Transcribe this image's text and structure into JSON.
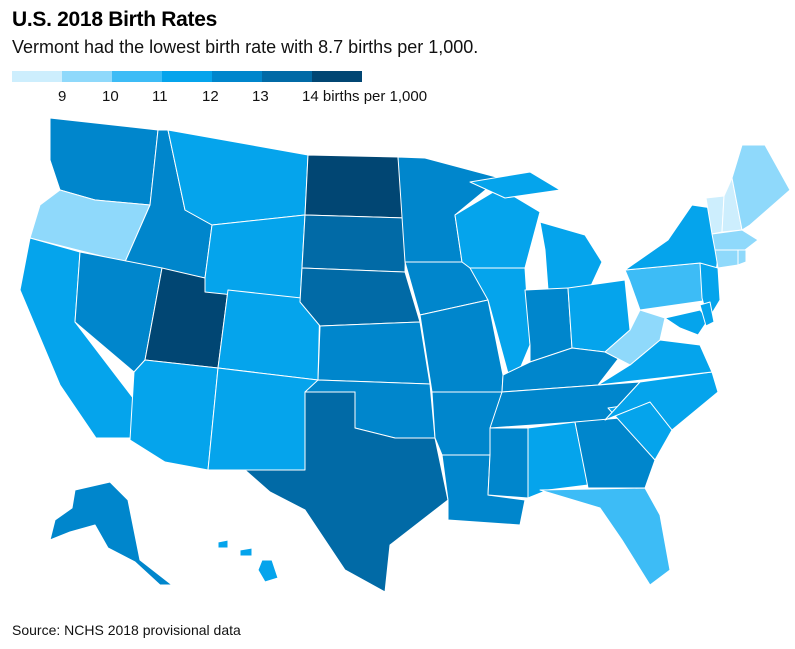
{
  "title": "U.S. 2018 Birth Rates",
  "subtitle": "Vermont had the lowest birth rate with 8.7 births per 1,000.",
  "source": "Source: NCHS 2018 provisional data",
  "legend": {
    "labels": [
      "9",
      "10",
      "11",
      "12",
      "13",
      "14 births per 1,000"
    ],
    "colors": [
      "#cdeefd",
      "#8fd9fb",
      "#3dbcf6",
      "#05a4ec",
      "#0086cc",
      "#016aa6",
      "#014673"
    ]
  },
  "states": {
    "WA": {
      "name": "Washington",
      "bin": 4
    },
    "OR": {
      "name": "Oregon",
      "bin": 1
    },
    "CA": {
      "name": "California",
      "bin": 3
    },
    "ID": {
      "name": "Idaho",
      "bin": 4
    },
    "NV": {
      "name": "Nevada",
      "bin": 4
    },
    "UT": {
      "name": "Utah",
      "bin": 6
    },
    "AZ": {
      "name": "Arizona",
      "bin": 3
    },
    "MT": {
      "name": "Montana",
      "bin": 3
    },
    "WY": {
      "name": "Wyoming",
      "bin": 3
    },
    "CO": {
      "name": "Colorado",
      "bin": 3
    },
    "NM": {
      "name": "New Mexico",
      "bin": 3
    },
    "ND": {
      "name": "North Dakota",
      "bin": 6
    },
    "SD": {
      "name": "South Dakota",
      "bin": 5
    },
    "NE": {
      "name": "Nebraska",
      "bin": 5
    },
    "KS": {
      "name": "Kansas",
      "bin": 4
    },
    "OK": {
      "name": "Oklahoma",
      "bin": 4
    },
    "TX": {
      "name": "Texas",
      "bin": 5
    },
    "MN": {
      "name": "Minnesota",
      "bin": 4
    },
    "IA": {
      "name": "Iowa",
      "bin": 4
    },
    "MO": {
      "name": "Missouri",
      "bin": 4
    },
    "AR": {
      "name": "Arkansas",
      "bin": 4
    },
    "LA": {
      "name": "Louisiana",
      "bin": 4
    },
    "WI": {
      "name": "Wisconsin",
      "bin": 3
    },
    "IL": {
      "name": "Illinois",
      "bin": 3
    },
    "MI": {
      "name": "Michigan",
      "bin": 3
    },
    "IN": {
      "name": "Indiana",
      "bin": 4
    },
    "OH": {
      "name": "Ohio",
      "bin": 3
    },
    "KY": {
      "name": "Kentucky",
      "bin": 4
    },
    "TN": {
      "name": "Tennessee",
      "bin": 4
    },
    "MS": {
      "name": "Mississippi",
      "bin": 4
    },
    "AL": {
      "name": "Alabama",
      "bin": 3
    },
    "GA": {
      "name": "Georgia",
      "bin": 4
    },
    "FL": {
      "name": "Florida",
      "bin": 2
    },
    "SC": {
      "name": "South Carolina",
      "bin": 3
    },
    "NC": {
      "name": "North Carolina",
      "bin": 3
    },
    "VA": {
      "name": "Virginia",
      "bin": 3
    },
    "WV": {
      "name": "West Virginia",
      "bin": 1
    },
    "PA": {
      "name": "Pennsylvania",
      "bin": 2
    },
    "NY": {
      "name": "New York",
      "bin": 3
    },
    "NJ": {
      "name": "New Jersey",
      "bin": 3
    },
    "MD": {
      "name": "Maryland",
      "bin": 3
    },
    "DE": {
      "name": "Delaware",
      "bin": 3
    },
    "VT": {
      "name": "Vermont",
      "bin": 0
    },
    "NH": {
      "name": "New Hampshire",
      "bin": 0
    },
    "ME": {
      "name": "Maine",
      "bin": 1
    },
    "MA": {
      "name": "Massachusetts",
      "bin": 1
    },
    "CT": {
      "name": "Connecticut",
      "bin": 1
    },
    "RI": {
      "name": "Rhode Island",
      "bin": 1
    },
    "AK": {
      "name": "Alaska",
      "bin": 4
    },
    "HI": {
      "name": "Hawaii",
      "bin": 3
    }
  }
}
